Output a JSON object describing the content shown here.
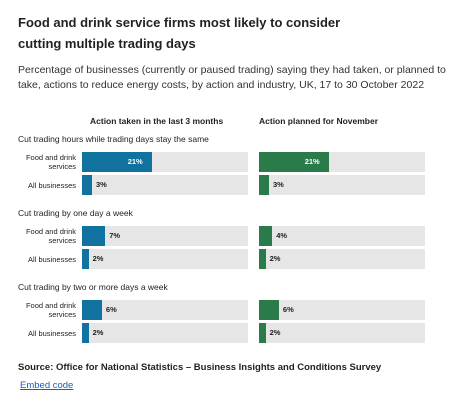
{
  "chart_data": {
    "type": "bar",
    "title": "Food and drink service firms most likely to consider cutting multiple trading days",
    "subtitle": "Percentage of businesses (currently or paused trading) saying they had taken, or planned to take, actions to reduce energy costs, by action and industry, UK, 17 to 30 October 2022",
    "xlim": [
      0,
      50
    ],
    "groups": [
      "Cut trading hours while trading days stay the same",
      "Cut trading by one day a week",
      "Cut trading by two or more days a week"
    ],
    "categories": [
      "Food and drink services",
      "All businesses"
    ],
    "panels": [
      {
        "name": "Action taken in the last 3 months",
        "color": "#12729f",
        "values": [
          [
            21,
            3
          ],
          [
            7,
            2
          ],
          [
            6,
            2
          ]
        ],
        "value_labels": [
          [
            "21%",
            "3%"
          ],
          [
            "7%",
            "2%"
          ],
          [
            "6%",
            "2%"
          ]
        ]
      },
      {
        "name": "Action planned for November",
        "color": "#2a7a4a",
        "values": [
          [
            21,
            3
          ],
          [
            4,
            2
          ],
          [
            6,
            2
          ]
        ],
        "value_labels": [
          [
            "21%",
            "3%"
          ],
          [
            "4%",
            "2%"
          ],
          [
            "6%",
            "2%"
          ]
        ]
      }
    ],
    "source": "Source: Office for National Statistics – Business Insights and Conditions Survey",
    "link": "Embed code"
  }
}
